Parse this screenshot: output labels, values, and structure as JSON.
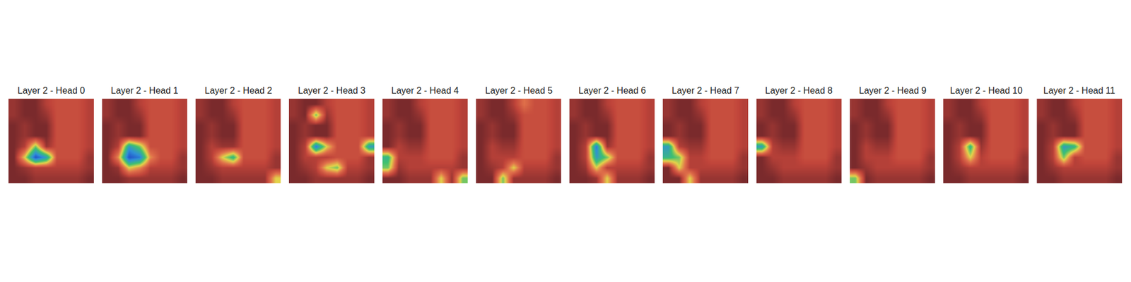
{
  "chart_data": [
    {
      "type": "heatmap",
      "title": "Layer 2 - Head 0",
      "tick_labels": false,
      "zlim": [
        0,
        1
      ],
      "cells": [
        [
          0.95,
          1,
          1,
          0.9,
          0.85,
          0.85,
          0.85,
          0.9
        ],
        [
          0.95,
          1,
          1,
          0.95,
          0.85,
          0.85,
          0.85,
          0.9
        ],
        [
          1,
          0.95,
          1,
          1,
          0.85,
          0.85,
          0.85,
          0.9
        ],
        [
          1,
          0.95,
          1,
          1,
          0.85,
          0.85,
          0.85,
          0.9
        ],
        [
          1,
          0.9,
          0.5,
          0.95,
          0.85,
          0.85,
          0.85,
          0.9
        ],
        [
          1,
          0.6,
          0.1,
          0.3,
          0.85,
          0.85,
          0.85,
          0.95
        ],
        [
          1,
          0.95,
          0.9,
          0.9,
          0.9,
          0.9,
          0.9,
          0.95
        ],
        [
          1,
          1,
          0.95,
          0.95,
          0.95,
          0.95,
          0.95,
          1
        ]
      ]
    },
    {
      "type": "heatmap",
      "title": "Layer 2 - Head 1",
      "tick_labels": false,
      "zlim": [
        0,
        1
      ],
      "cells": [
        [
          0.95,
          1,
          1,
          0.9,
          0.85,
          0.85,
          0.85,
          0.9
        ],
        [
          0.95,
          1,
          1,
          0.95,
          0.85,
          0.85,
          0.85,
          0.9
        ],
        [
          1,
          0.95,
          1,
          1,
          0.85,
          0.85,
          0.85,
          0.9
        ],
        [
          1,
          0.95,
          1,
          1,
          0.85,
          0.85,
          0.85,
          0.9
        ],
        [
          1,
          0.9,
          0.3,
          0.5,
          0.85,
          0.85,
          0.85,
          0.9
        ],
        [
          1,
          0.7,
          0.1,
          0.2,
          0.7,
          0.85,
          0.85,
          0.95
        ],
        [
          1,
          0.95,
          0.6,
          0.7,
          0.9,
          0.9,
          0.9,
          0.95
        ],
        [
          1,
          1,
          0.95,
          0.95,
          0.95,
          0.95,
          0.95,
          1
        ]
      ]
    },
    {
      "type": "heatmap",
      "title": "Layer 2 - Head 2",
      "tick_labels": false,
      "zlim": [
        0,
        1
      ],
      "cells": [
        [
          0.95,
          1,
          1,
          0.9,
          0.85,
          0.85,
          0.85,
          0.9
        ],
        [
          0.95,
          1,
          1,
          0.95,
          0.85,
          0.85,
          0.85,
          0.9
        ],
        [
          1,
          0.95,
          1,
          1,
          0.85,
          0.85,
          0.85,
          0.9
        ],
        [
          1,
          0.95,
          1,
          1,
          0.85,
          0.85,
          0.85,
          0.9
        ],
        [
          1,
          0.9,
          0.95,
          0.95,
          0.85,
          0.85,
          0.85,
          0.9
        ],
        [
          1,
          0.9,
          0.6,
          0.4,
          0.85,
          0.85,
          0.85,
          0.95
        ],
        [
          1,
          0.95,
          0.9,
          0.9,
          0.9,
          0.9,
          0.9,
          0.95
        ],
        [
          1,
          1,
          0.95,
          0.95,
          0.95,
          0.95,
          0.95,
          0.6
        ]
      ]
    },
    {
      "type": "heatmap",
      "title": "Layer 2 - Head 3",
      "tick_labels": false,
      "zlim": [
        0,
        1
      ],
      "cells": [
        [
          0.95,
          1,
          1,
          0.9,
          0.85,
          0.85,
          0.85,
          0.9
        ],
        [
          0.95,
          1,
          0.5,
          0.95,
          0.85,
          0.85,
          0.85,
          0.9
        ],
        [
          1,
          0.95,
          1,
          1,
          0.85,
          0.85,
          0.85,
          0.9
        ],
        [
          1,
          0.95,
          1,
          1,
          0.85,
          0.85,
          0.85,
          0.9
        ],
        [
          1,
          0.9,
          0.2,
          0.6,
          0.85,
          0.85,
          0.85,
          0.3
        ],
        [
          1,
          0.9,
          0.9,
          0.9,
          0.85,
          0.85,
          0.85,
          0.95
        ],
        [
          1,
          0.95,
          0.9,
          0.6,
          0.5,
          0.9,
          0.9,
          0.95
        ],
        [
          1,
          1,
          0.95,
          0.95,
          0.95,
          0.95,
          0.95,
          1
        ]
      ]
    },
    {
      "type": "heatmap",
      "title": "Layer 2 - Head 4",
      "tick_labels": false,
      "zlim": [
        0,
        1
      ],
      "cells": [
        [
          0.95,
          1,
          1,
          0.9,
          0.85,
          0.85,
          0.85,
          0.9
        ],
        [
          0.95,
          1,
          1,
          0.95,
          0.85,
          0.85,
          0.85,
          0.9
        ],
        [
          1,
          0.95,
          1,
          1,
          0.85,
          0.85,
          0.85,
          0.9
        ],
        [
          1,
          0.95,
          1,
          1,
          0.85,
          0.85,
          0.85,
          0.9
        ],
        [
          1,
          0.9,
          0.95,
          0.95,
          0.85,
          0.85,
          0.85,
          0.9
        ],
        [
          0.4,
          0.9,
          0.9,
          0.9,
          0.85,
          0.85,
          0.85,
          0.95
        ],
        [
          0.5,
          0.95,
          0.9,
          0.9,
          0.9,
          0.9,
          0.9,
          0.95
        ],
        [
          1,
          1,
          0.95,
          0.95,
          0.95,
          0.6,
          0.95,
          0.5
        ]
      ]
    },
    {
      "type": "heatmap",
      "title": "Layer 2 - Head 5",
      "tick_labels": false,
      "zlim": [
        0,
        1
      ],
      "cells": [
        [
          0.95,
          1,
          1,
          0.9,
          0.75,
          0.85,
          0.85,
          0.9
        ],
        [
          0.95,
          1,
          1,
          0.95,
          0.85,
          0.85,
          0.85,
          0.9
        ],
        [
          1,
          0.95,
          1,
          1,
          0.85,
          0.85,
          0.85,
          0.9
        ],
        [
          1,
          0.95,
          1,
          1,
          0.85,
          0.85,
          0.85,
          0.9
        ],
        [
          1,
          0.9,
          0.95,
          0.95,
          0.85,
          0.85,
          0.85,
          0.9
        ],
        [
          1,
          0.9,
          0.9,
          0.9,
          0.85,
          0.85,
          0.85,
          0.95
        ],
        [
          1,
          0.95,
          0.9,
          0.6,
          0.9,
          0.9,
          0.9,
          0.95
        ],
        [
          1,
          1,
          0.5,
          0.95,
          0.95,
          0.95,
          0.95,
          1
        ]
      ]
    },
    {
      "type": "heatmap",
      "title": "Layer 2 - Head 6",
      "tick_labels": false,
      "zlim": [
        0,
        1
      ],
      "cells": [
        [
          0.95,
          1,
          1,
          0.9,
          0.85,
          0.85,
          0.85,
          0.9
        ],
        [
          0.95,
          1,
          1,
          0.95,
          0.85,
          0.85,
          0.85,
          0.9
        ],
        [
          1,
          0.95,
          1,
          1,
          0.85,
          0.85,
          0.85,
          0.9
        ],
        [
          1,
          0.95,
          1,
          1,
          0.85,
          0.85,
          0.85,
          0.9
        ],
        [
          1,
          0.9,
          0.2,
          0.95,
          0.85,
          0.85,
          0.85,
          0.9
        ],
        [
          1,
          0.9,
          0.3,
          0.5,
          0.85,
          0.85,
          0.85,
          0.95
        ],
        [
          1,
          0.95,
          0.6,
          0.9,
          0.9,
          0.9,
          0.9,
          0.95
        ],
        [
          1,
          1,
          0.95,
          0.6,
          0.95,
          0.95,
          0.95,
          1
        ]
      ]
    },
    {
      "type": "heatmap",
      "title": "Layer 2 - Head 7",
      "tick_labels": false,
      "zlim": [
        0,
        1
      ],
      "cells": [
        [
          0.95,
          1,
          1,
          0.9,
          0.85,
          0.85,
          0.85,
          0.9
        ],
        [
          0.95,
          1,
          1,
          0.95,
          0.85,
          0.85,
          0.85,
          0.9
        ],
        [
          1,
          0.95,
          1,
          1,
          0.85,
          0.85,
          0.85,
          0.9
        ],
        [
          1,
          0.95,
          1,
          1,
          0.85,
          0.85,
          0.85,
          0.9
        ],
        [
          0.3,
          0.9,
          0.95,
          0.95,
          0.85,
          0.85,
          0.85,
          0.9
        ],
        [
          0.4,
          0.5,
          0.9,
          0.9,
          0.85,
          0.85,
          0.85,
          0.95
        ],
        [
          1,
          0.6,
          0.9,
          0.9,
          0.9,
          0.9,
          0.9,
          0.95
        ],
        [
          1,
          1,
          0.6,
          0.95,
          0.95,
          0.95,
          0.95,
          1
        ]
      ]
    },
    {
      "type": "heatmap",
      "title": "Layer 2 - Head 8",
      "tick_labels": false,
      "zlim": [
        0,
        1
      ],
      "cells": [
        [
          0.95,
          1,
          1,
          0.9,
          0.85,
          0.85,
          0.85,
          0.9
        ],
        [
          0.95,
          1,
          1,
          0.95,
          0.85,
          0.85,
          0.85,
          0.9
        ],
        [
          1,
          0.95,
          1,
          1,
          0.85,
          0.85,
          0.85,
          0.9
        ],
        [
          1,
          0.95,
          1,
          1,
          0.85,
          0.85,
          0.85,
          0.9
        ],
        [
          0.3,
          0.9,
          0.95,
          0.95,
          0.85,
          0.85,
          0.85,
          0.9
        ],
        [
          1,
          0.9,
          0.9,
          0.9,
          0.85,
          0.85,
          0.85,
          0.95
        ],
        [
          1,
          0.95,
          0.9,
          0.9,
          0.9,
          0.9,
          0.9,
          0.95
        ],
        [
          1,
          1,
          0.95,
          0.95,
          0.95,
          0.95,
          0.95,
          1
        ]
      ]
    },
    {
      "type": "heatmap",
      "title": "Layer 2 - Head 9",
      "tick_labels": false,
      "zlim": [
        0,
        1
      ],
      "cells": [
        [
          0.95,
          1,
          1,
          0.9,
          0.85,
          0.85,
          0.85,
          0.9
        ],
        [
          0.95,
          1,
          1,
          0.95,
          0.85,
          0.85,
          0.85,
          0.9
        ],
        [
          1,
          0.95,
          1,
          1,
          0.85,
          0.85,
          0.85,
          0.9
        ],
        [
          1,
          0.95,
          1,
          1,
          0.85,
          0.85,
          0.85,
          0.9
        ],
        [
          1,
          0.9,
          0.95,
          0.95,
          0.85,
          0.85,
          0.85,
          0.9
        ],
        [
          1,
          0.9,
          0.9,
          0.9,
          0.85,
          0.85,
          0.85,
          0.95
        ],
        [
          1,
          0.95,
          0.9,
          0.9,
          0.9,
          0.9,
          0.9,
          0.95
        ],
        [
          0.5,
          1,
          0.95,
          0.95,
          0.95,
          0.95,
          0.95,
          1
        ]
      ]
    },
    {
      "type": "heatmap",
      "title": "Layer 2 - Head 10",
      "tick_labels": false,
      "zlim": [
        0,
        1
      ],
      "cells": [
        [
          0.95,
          1,
          1,
          0.9,
          0.85,
          0.85,
          0.85,
          0.9
        ],
        [
          0.95,
          1,
          1,
          0.95,
          0.85,
          0.85,
          0.85,
          0.9
        ],
        [
          1,
          0.95,
          1,
          1,
          0.85,
          0.85,
          0.85,
          0.9
        ],
        [
          1,
          0.95,
          1,
          1,
          0.85,
          0.85,
          0.85,
          0.9
        ],
        [
          1,
          0.9,
          0.4,
          0.95,
          0.85,
          0.85,
          0.85,
          0.9
        ],
        [
          1,
          0.9,
          0.6,
          0.9,
          0.85,
          0.85,
          0.85,
          0.95
        ],
        [
          1,
          0.95,
          0.9,
          0.9,
          0.9,
          0.9,
          0.9,
          0.95
        ],
        [
          1,
          1,
          0.95,
          0.95,
          0.95,
          0.95,
          0.95,
          1
        ]
      ]
    },
    {
      "type": "heatmap",
      "title": "Layer 2 - Head 11",
      "tick_labels": false,
      "zlim": [
        0,
        1
      ],
      "cells": [
        [
          0.95,
          1,
          1,
          0.9,
          0.85,
          0.85,
          0.85,
          0.9
        ],
        [
          0.95,
          1,
          1,
          0.95,
          0.85,
          0.85,
          0.85,
          0.9
        ],
        [
          1,
          0.95,
          1,
          1,
          0.85,
          0.85,
          0.85,
          0.9
        ],
        [
          1,
          0.95,
          1,
          1,
          0.85,
          0.85,
          0.85,
          0.9
        ],
        [
          1,
          0.9,
          0.3,
          0.4,
          0.85,
          0.85,
          0.85,
          0.9
        ],
        [
          1,
          0.9,
          0.5,
          0.9,
          0.85,
          0.85,
          0.85,
          0.95
        ],
        [
          1,
          0.95,
          0.9,
          0.9,
          0.9,
          0.9,
          0.9,
          0.95
        ],
        [
          1,
          1,
          0.95,
          0.95,
          0.95,
          0.95,
          0.95,
          1
        ]
      ]
    }
  ]
}
